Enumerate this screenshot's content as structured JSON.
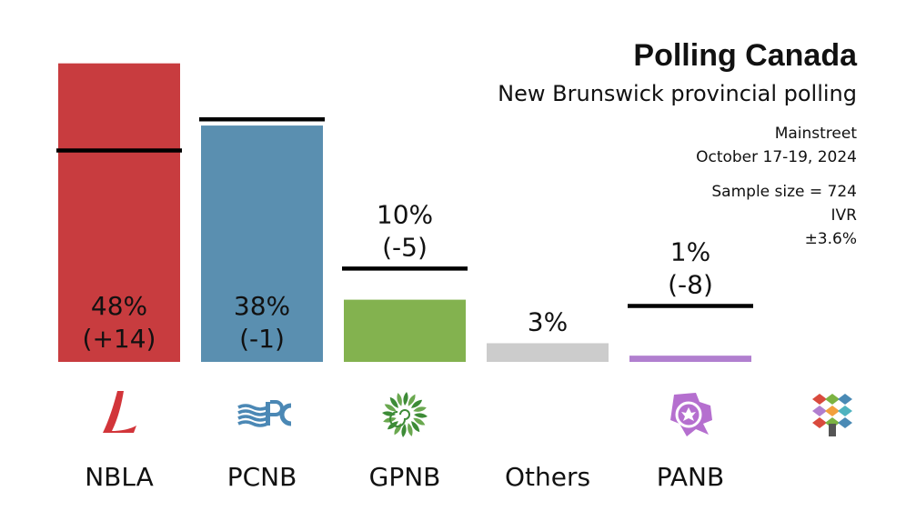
{
  "header": {
    "title": "Polling Canada",
    "subtitle": "New Brunswick provincial polling",
    "pollster": "Mainstreet",
    "dates": "October 17-19, 2024",
    "sample": "Sample size = 724",
    "method": "IVR",
    "margin": "±3.6%"
  },
  "chart_data": {
    "type": "bar",
    "categories": [
      "NBLA",
      "PCNB",
      "GPNB",
      "Others",
      "PANB"
    ],
    "values": [
      48,
      38,
      10,
      3,
      1
    ],
    "changes": [
      "+14",
      "-1",
      "-5",
      null,
      "-8"
    ],
    "value_labels": [
      "48%",
      "38%",
      "10%",
      "3%",
      "1%"
    ],
    "change_labels": [
      "(+14)",
      "(-1)",
      "(-5)",
      "",
      "(-8)"
    ],
    "previous_values": [
      34,
      39,
      15,
      null,
      9
    ],
    "colors": [
      "#c83c3f",
      "#5a8fb0",
      "#83b24f",
      "#cccccc",
      "#b17fcf"
    ],
    "logos": [
      "liberal-logo-icon",
      "pc-logo-icon",
      "green-logo-icon",
      "",
      "pa-logo-icon"
    ],
    "ylim": [
      0,
      50
    ],
    "grid": false,
    "legend": "none"
  },
  "brand_icon": "polling-canada-logo-icon"
}
